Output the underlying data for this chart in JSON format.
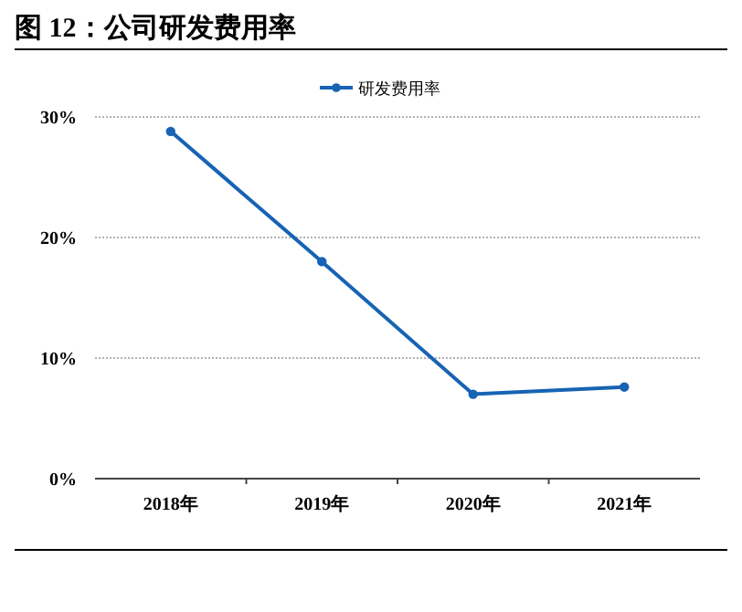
{
  "chart_data": {
    "type": "line",
    "title": "图 12：公司研发费用率",
    "categories": [
      "2018年",
      "2019年",
      "2020年",
      "2021年"
    ],
    "series": [
      {
        "name": "研发费用率",
        "color": "#1763b4",
        "values": [
          28.8,
          18.0,
          7.0,
          7.6
        ]
      }
    ],
    "ylim": [
      0,
      30
    ],
    "yticks": [
      {
        "value": 0,
        "label": "0%"
      },
      {
        "value": 10,
        "label": "10%"
      },
      {
        "value": 20,
        "label": "20%"
      },
      {
        "value": 30,
        "label": "30%"
      }
    ],
    "grid": "y",
    "legend": "top",
    "marker": "circle",
    "line_style": "solid"
  }
}
